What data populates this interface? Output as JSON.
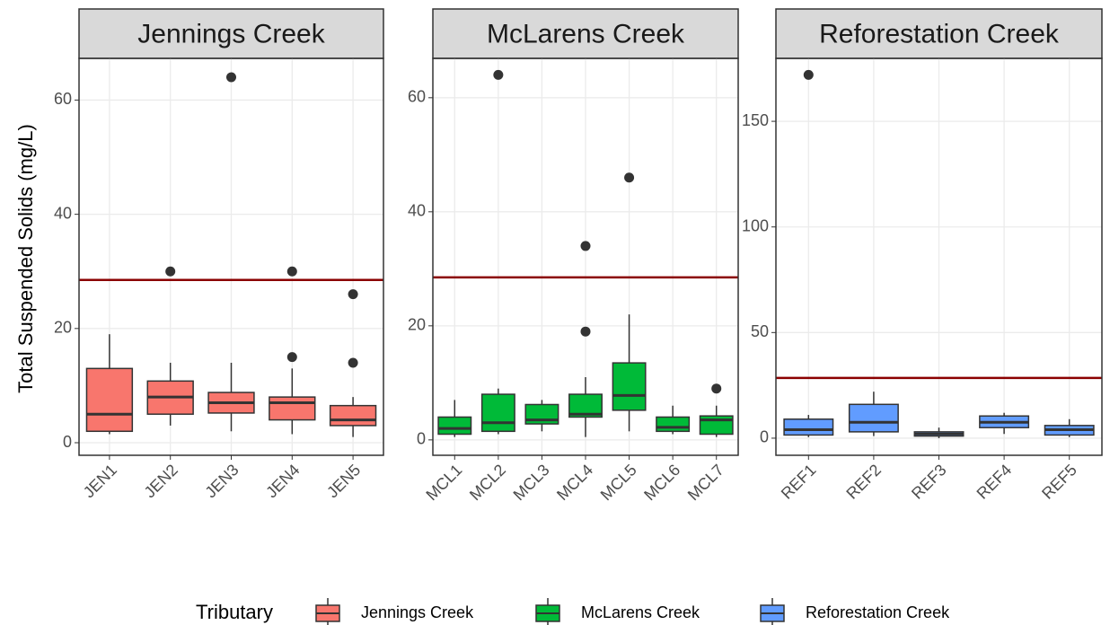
{
  "chart_data": [
    {
      "type": "box",
      "title": "Jennings Creek",
      "ylabel": "Total Suspended Solids (mg/L)",
      "legend_title": "Tributary",
      "color": "#F8766D",
      "categories": [
        "JEN1",
        "JEN2",
        "JEN3",
        "JEN4",
        "JEN5"
      ],
      "boxes": [
        {
          "whislo": 1.5,
          "q1": 2,
          "med": 5,
          "q3": 13,
          "whishi": 19,
          "outliers": []
        },
        {
          "whislo": 3,
          "q1": 5,
          "med": 8,
          "q3": 10.8,
          "whishi": 14,
          "outliers": [
            30
          ]
        },
        {
          "whislo": 2,
          "q1": 5.2,
          "med": 7,
          "q3": 8.8,
          "whishi": 14,
          "outliers": [
            64
          ]
        },
        {
          "whislo": 1.5,
          "q1": 4,
          "med": 7,
          "q3": 8,
          "whishi": 13,
          "outliers": [
            15,
            30
          ]
        },
        {
          "whislo": 1,
          "q1": 3,
          "med": 4,
          "q3": 6.5,
          "whishi": 8,
          "outliers": [
            14,
            26
          ]
        }
      ],
      "hline": 28.5,
      "hline_color": "#8b0000",
      "ylim": [
        -2.2,
        67.3
      ],
      "yticks": [
        0,
        20,
        40,
        60
      ],
      "grid": true
    },
    {
      "type": "box",
      "title": "McLarens Creek",
      "color": "#00BA38",
      "categories": [
        "MCL1",
        "MCL2",
        "MCL3",
        "MCL4",
        "MCL5",
        "MCL6",
        "MCL7"
      ],
      "boxes": [
        {
          "whislo": 0.5,
          "q1": 1,
          "med": 2,
          "q3": 4,
          "whishi": 7,
          "outliers": []
        },
        {
          "whislo": 1,
          "q1": 1.5,
          "med": 3,
          "q3": 8,
          "whishi": 9,
          "outliers": [
            64
          ]
        },
        {
          "whislo": 1.5,
          "q1": 2.8,
          "med": 3.5,
          "q3": 6.2,
          "whishi": 7,
          "outliers": []
        },
        {
          "whislo": 0.5,
          "q1": 4,
          "med": 4.5,
          "q3": 8,
          "whishi": 11,
          "outliers": [
            19,
            34
          ]
        },
        {
          "whislo": 1.5,
          "q1": 5.2,
          "med": 7.8,
          "q3": 13.5,
          "whishi": 22,
          "outliers": [
            46
          ]
        },
        {
          "whislo": 1,
          "q1": 1.5,
          "med": 2.2,
          "q3": 4,
          "whishi": 6,
          "outliers": []
        },
        {
          "whislo": 0.5,
          "q1": 1,
          "med": 3.5,
          "q3": 4.2,
          "whishi": 6,
          "outliers": [
            9
          ]
        }
      ],
      "hline": 28.5,
      "hline_color": "#8b0000",
      "ylim": [
        -2.7,
        66.9
      ],
      "yticks": [
        0,
        20,
        40,
        60
      ],
      "grid": true
    },
    {
      "type": "box",
      "title": "Reforestation Creek",
      "color": "#619CFF",
      "categories": [
        "REF1",
        "REF2",
        "REF3",
        "REF4",
        "REF5"
      ],
      "boxes": [
        {
          "whislo": 0.5,
          "q1": 1.5,
          "med": 4,
          "q3": 9,
          "whishi": 11,
          "outliers": [
            172
          ]
        },
        {
          "whislo": 1,
          "q1": 3,
          "med": 7.5,
          "q3": 16,
          "whishi": 22,
          "outliers": []
        },
        {
          "whislo": 0,
          "q1": 1,
          "med": 2,
          "q3": 3,
          "whishi": 5,
          "outliers": []
        },
        {
          "whislo": 2,
          "q1": 5,
          "med": 7.5,
          "q3": 10.5,
          "whishi": 12,
          "outliers": []
        },
        {
          "whislo": 0.5,
          "q1": 1.5,
          "med": 4,
          "q3": 6,
          "whishi": 9,
          "outliers": []
        }
      ],
      "hline": 28.5,
      "hline_color": "#8b0000",
      "ylim": [
        -8.1,
        179.8
      ],
      "yticks": [
        0,
        50,
        100,
        150
      ],
      "grid": true
    }
  ]
}
